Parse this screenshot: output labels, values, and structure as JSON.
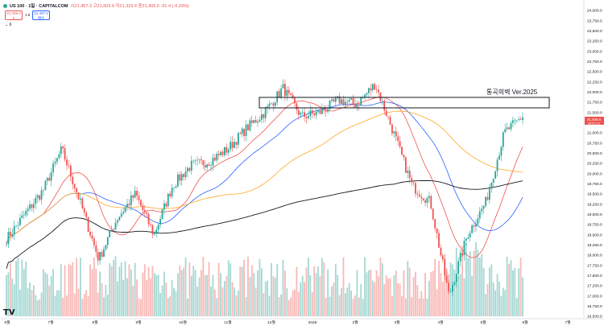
{
  "header": {
    "symbol": "US 100 · 1일 · CAPITALCOM",
    "ohlc": "시21,457.3 고21,603.9 저21,329.4 종21,406.6 -61.4 (-0.29%)",
    "sell_price": "21,405.4",
    "sell_label": "S",
    "spread": "1.8",
    "buy_price": "21,407.2",
    "buy_label": "매수",
    "indicator_count": "6"
  },
  "annotation": "통곡의벽 Ver.2025",
  "price_axis": {
    "ticks": [
      "24,000.0",
      "23,750.0",
      "23,500.0",
      "23,250.0",
      "23,000.0",
      "22,750.0",
      "22,500.0",
      "22,250.0",
      "22,000.0",
      "21,750.0",
      "21,500.0",
      "21,250.0",
      "21,000.0",
      "20,750.0",
      "20,500.0",
      "20,250.0",
      "20,000.0",
      "19,750.0",
      "19,500.0",
      "19,250.0",
      "19,000.0",
      "18,750.0",
      "18,500.0",
      "18,250.0",
      "18,000.0",
      "17,750.0",
      "17,500.0",
      "17,250.0",
      "17,000.0",
      "16,750.0",
      "16,500.0"
    ],
    "last_price": "21,406.6",
    "last_countdown": "06:02:13"
  },
  "time_axis": {
    "ticks": [
      "6월",
      "7월",
      "8월",
      "9월",
      "10월",
      "11월",
      "12월",
      "2025",
      "2월",
      "3월",
      "4월",
      "5월",
      "6월",
      "7월"
    ]
  },
  "colors": {
    "up": "#26a69a",
    "down": "#ef5350",
    "ma_short": "#ef5350",
    "ma_mid": "#2962ff",
    "ma_long": "#ffa726",
    "ma_200": "#131722",
    "volume_up": "#a5d8d3",
    "volume_down": "#f7b9b7"
  },
  "chart_data": {
    "type": "candlestick",
    "ylim": [
      16500,
      24000
    ],
    "resistance_zone": [
      21750,
      21950
    ],
    "monthly_path": [
      [
        "6월",
        18400
      ],
      [
        "6월",
        19000
      ],
      [
        "7월",
        19600
      ],
      [
        "7월",
        20600
      ],
      [
        "8월",
        19300
      ],
      [
        "8월",
        17900
      ],
      [
        "8월",
        18900
      ],
      [
        "9월",
        19500
      ],
      [
        "9월",
        18500
      ],
      [
        "9월",
        19700
      ],
      [
        "10월",
        20200
      ],
      [
        "10월",
        20300
      ],
      [
        "11월",
        20600
      ],
      [
        "11월",
        21100
      ],
      [
        "12월",
        21500
      ],
      [
        "12월",
        22100
      ],
      [
        "12월",
        21400
      ],
      [
        "2025",
        21500
      ],
      [
        "2025",
        21800
      ],
      [
        "2월",
        21700
      ],
      [
        "2월",
        22200
      ],
      [
        "3월",
        21000
      ],
      [
        "3월",
        19700
      ],
      [
        "4월",
        19300
      ],
      [
        "4월",
        17000
      ],
      [
        "4월",
        18500
      ],
      [
        "5월",
        19300
      ],
      [
        "5월",
        21000
      ],
      [
        "6월",
        21400
      ]
    ]
  }
}
